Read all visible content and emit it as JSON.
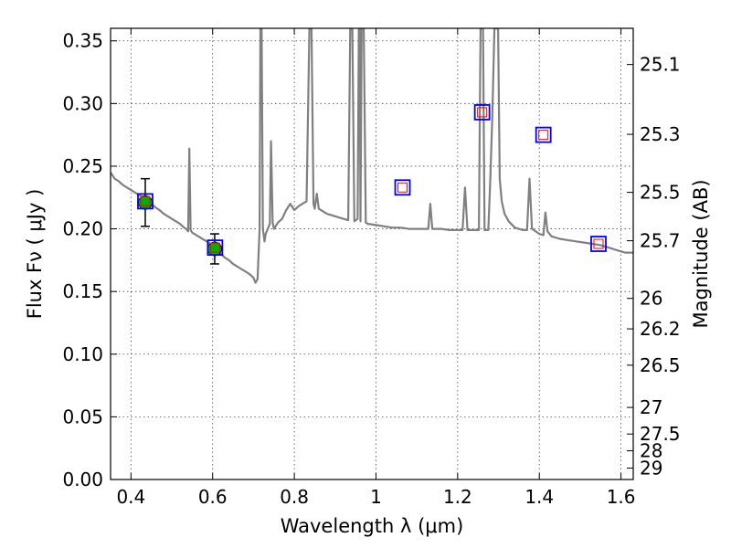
{
  "chart_data": {
    "type": "scatter",
    "xlabel": "Wavelength  λ (μm)",
    "ylabel": "Flux  Fν  ( μJy )",
    "y2label": "Magnitude (AB)",
    "xlim": [
      0.35,
      1.63
    ],
    "ylim": [
      0.0,
      0.36
    ],
    "grid": true,
    "x_ticks": [
      0.4,
      0.6,
      0.8,
      1.0,
      1.2,
      1.4,
      1.6
    ],
    "x_tick_labels": [
      "0.4",
      "0.6",
      "0.8",
      "1",
      "1.2",
      "1.4",
      "1.6"
    ],
    "y_ticks": [
      0.0,
      0.05,
      0.1,
      0.15,
      0.2,
      0.25,
      0.3,
      0.35
    ],
    "y_tick_labels": [
      "0.00",
      "0.05",
      "0.10",
      "0.15",
      "0.20",
      "0.25",
      "0.30",
      "0.35"
    ],
    "y2_ticks": [
      {
        "label": "25.1",
        "flux": 0.3311
      },
      {
        "label": "25.3",
        "flux": 0.2754
      },
      {
        "label": "25.5",
        "flux": 0.2291
      },
      {
        "label": "25.7",
        "flux": 0.1905
      },
      {
        "label": "26",
        "flux": 0.1445
      },
      {
        "label": "26.2",
        "flux": 0.1202
      },
      {
        "label": "26.5",
        "flux": 0.0912
      },
      {
        "label": "27",
        "flux": 0.0575
      },
      {
        "label": "27.5",
        "flux": 0.0363
      },
      {
        "label": "28",
        "flux": 0.0229
      },
      {
        "label": "29",
        "flux": 0.0091
      }
    ],
    "colors": {
      "spectrum": "#808080",
      "observed_fill": "#00b000",
      "model_box": "#0000ff",
      "model_inner": "#ff0000"
    },
    "series": [
      {
        "kind": "model_spectrum",
        "points": [
          [
            0.35,
            0.245
          ],
          [
            0.36,
            0.24
          ],
          [
            0.37,
            0.238
          ],
          [
            0.38,
            0.235
          ],
          [
            0.39,
            0.233
          ],
          [
            0.4,
            0.231
          ],
          [
            0.41,
            0.229
          ],
          [
            0.42,
            0.227
          ],
          [
            0.43,
            0.225
          ],
          [
            0.44,
            0.223
          ],
          [
            0.45,
            0.22
          ],
          [
            0.46,
            0.217
          ],
          [
            0.47,
            0.215
          ],
          [
            0.48,
            0.212
          ],
          [
            0.49,
            0.21
          ],
          [
            0.5,
            0.208
          ],
          [
            0.51,
            0.206
          ],
          [
            0.52,
            0.204
          ],
          [
            0.53,
            0.201
          ],
          [
            0.535,
            0.2
          ],
          [
            0.54,
            0.198
          ],
          [
            0.543,
            0.264
          ],
          [
            0.546,
            0.199
          ],
          [
            0.55,
            0.197
          ],
          [
            0.56,
            0.195
          ],
          [
            0.57,
            0.193
          ],
          [
            0.58,
            0.191
          ],
          [
            0.59,
            0.189
          ],
          [
            0.6,
            0.186
          ],
          [
            0.61,
            0.183
          ],
          [
            0.62,
            0.18
          ],
          [
            0.63,
            0.177
          ],
          [
            0.64,
            0.175
          ],
          [
            0.65,
            0.172
          ],
          [
            0.66,
            0.17
          ],
          [
            0.67,
            0.168
          ],
          [
            0.68,
            0.166
          ],
          [
            0.69,
            0.164
          ],
          [
            0.7,
            0.161
          ],
          [
            0.705,
            0.157
          ],
          [
            0.71,
            0.16
          ],
          [
            0.715,
            0.2
          ],
          [
            0.717,
            0.36
          ],
          [
            0.72,
            0.36
          ],
          [
            0.723,
            0.2
          ],
          [
            0.727,
            0.19
          ],
          [
            0.73,
            0.196
          ],
          [
            0.74,
            0.204
          ],
          [
            0.743,
            0.27
          ],
          [
            0.747,
            0.205
          ],
          [
            0.75,
            0.2
          ],
          [
            0.76,
            0.205
          ],
          [
            0.77,
            0.208
          ],
          [
            0.78,
            0.215
          ],
          [
            0.79,
            0.22
          ],
          [
            0.8,
            0.215
          ],
          [
            0.81,
            0.218
          ],
          [
            0.82,
            0.22
          ],
          [
            0.83,
            0.222
          ],
          [
            0.837,
            0.36
          ],
          [
            0.842,
            0.36
          ],
          [
            0.847,
            0.22
          ],
          [
            0.85,
            0.216
          ],
          [
            0.855,
            0.228
          ],
          [
            0.86,
            0.216
          ],
          [
            0.87,
            0.214
          ],
          [
            0.88,
            0.212
          ],
          [
            0.9,
            0.21
          ],
          [
            0.92,
            0.208
          ],
          [
            0.932,
            0.207
          ],
          [
            0.937,
            0.36
          ],
          [
            0.942,
            0.36
          ],
          [
            0.947,
            0.206
          ],
          [
            0.955,
            0.208
          ],
          [
            0.958,
            0.36
          ],
          [
            0.96,
            0.36
          ],
          [
            0.962,
            0.206
          ],
          [
            0.965,
            0.36
          ],
          [
            0.97,
            0.36
          ],
          [
            0.975,
            0.205
          ],
          [
            0.98,
            0.204
          ],
          [
            1.0,
            0.203
          ],
          [
            1.02,
            0.202
          ],
          [
            1.04,
            0.201
          ],
          [
            1.06,
            0.201
          ],
          [
            1.08,
            0.2
          ],
          [
            1.1,
            0.2
          ],
          [
            1.12,
            0.2
          ],
          [
            1.128,
            0.2
          ],
          [
            1.133,
            0.22
          ],
          [
            1.138,
            0.2
          ],
          [
            1.16,
            0.2
          ],
          [
            1.18,
            0.199
          ],
          [
            1.2,
            0.199
          ],
          [
            1.212,
            0.199
          ],
          [
            1.218,
            0.233
          ],
          [
            1.224,
            0.199
          ],
          [
            1.24,
            0.199
          ],
          [
            1.252,
            0.199
          ],
          [
            1.256,
            0.36
          ],
          [
            1.262,
            0.36
          ],
          [
            1.266,
            0.199
          ],
          [
            1.275,
            0.199
          ],
          [
            1.28,
            0.24
          ],
          [
            1.285,
            0.29
          ],
          [
            1.29,
            0.36
          ],
          [
            1.293,
            0.36
          ],
          [
            1.296,
            0.36
          ],
          [
            1.299,
            0.36
          ],
          [
            1.303,
            0.24
          ],
          [
            1.308,
            0.222
          ],
          [
            1.315,
            0.212
          ],
          [
            1.325,
            0.206
          ],
          [
            1.34,
            0.201
          ],
          [
            1.36,
            0.199
          ],
          [
            1.37,
            0.199
          ],
          [
            1.376,
            0.24
          ],
          [
            1.382,
            0.2
          ],
          [
            1.4,
            0.196
          ],
          [
            1.41,
            0.195
          ],
          [
            1.415,
            0.213
          ],
          [
            1.42,
            0.198
          ],
          [
            1.43,
            0.194
          ],
          [
            1.45,
            0.192
          ],
          [
            1.47,
            0.191
          ],
          [
            1.49,
            0.19
          ],
          [
            1.51,
            0.189
          ],
          [
            1.53,
            0.188
          ],
          [
            1.55,
            0.187
          ],
          [
            1.57,
            0.185
          ],
          [
            1.59,
            0.183
          ],
          [
            1.61,
            0.181
          ],
          [
            1.63,
            0.181
          ]
        ]
      },
      {
        "kind": "observed_photometry",
        "points": [
          {
            "x": 0.435,
            "y": 0.221,
            "yerr": 0.019
          },
          {
            "x": 0.605,
            "y": 0.184,
            "yerr": 0.012
          }
        ]
      },
      {
        "kind": "model_photometry",
        "points": [
          {
            "x": 0.435,
            "y": 0.222
          },
          {
            "x": 0.606,
            "y": 0.185
          },
          {
            "x": 1.065,
            "y": 0.233
          },
          {
            "x": 1.26,
            "y": 0.293
          },
          {
            "x": 1.41,
            "y": 0.275
          },
          {
            "x": 1.545,
            "y": 0.188
          }
        ]
      }
    ]
  }
}
